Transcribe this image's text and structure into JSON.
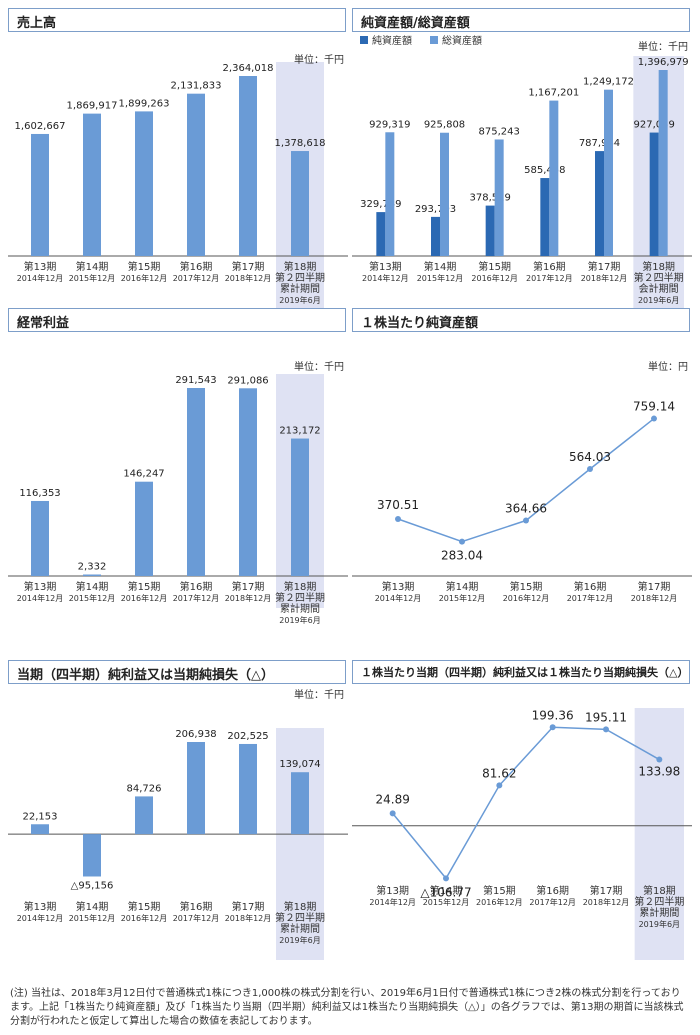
{
  "colors": {
    "primary": "#6a9bd6",
    "dark": "#2b69b3",
    "highlight_bg": "#dfe2f3",
    "axis": "#555555",
    "header_border": "#7d9ec9"
  },
  "footnote": "(注) 当社は、2018年3月12日付で普通株式1株につき1,000株の株式分割を行い、2019年6月1日付で普通株式1株につき2株の株式分割を行っております。上記「1株当たり純資産額」及び「1株当たり当期（四半期）純利益又は1株当たり当期純損失（△）」の各グラフでは、第13期の期首に当該株式分割が行われたと仮定して算出した場合の数値を表記しております。",
  "chart_data": [
    {
      "id": "sales",
      "type": "bar",
      "title": "売上高",
      "unit": "単位：千円",
      "categories": [
        [
          "第13期",
          "2014年12月"
        ],
        [
          "第14期",
          "2015年12月"
        ],
        [
          "第15期",
          "2016年12月"
        ],
        [
          "第16期",
          "2017年12月"
        ],
        [
          "第17期",
          "2018年12月"
        ],
        [
          "第18期",
          "第２四半期",
          "累計期間",
          "2019年6月"
        ]
      ],
      "series": [
        {
          "values": [
            1602667,
            1869917,
            1899263,
            2131833,
            2364018,
            1378618
          ]
        }
      ],
      "labels": [
        "1,602,667",
        "1,869,917",
        "1,899,263",
        "2,131,833",
        "2,364,018",
        "1,378,618"
      ],
      "ylim": [
        0,
        2364018
      ],
      "highlight_last": true
    },
    {
      "id": "assets",
      "type": "bar",
      "title": "純資産額/総資産額",
      "unit": "単位：千円",
      "legend_position": "top-left",
      "categories": [
        [
          "第13期",
          "2014年12月"
        ],
        [
          "第14期",
          "2015年12月"
        ],
        [
          "第15期",
          "2016年12月"
        ],
        [
          "第16期",
          "2017年12月"
        ],
        [
          "第17期",
          "2018年12月"
        ],
        [
          "第18期",
          "第２四半期",
          "会計期間",
          "2019年6月"
        ]
      ],
      "series": [
        {
          "name": "純資産額",
          "values": [
            329749,
            293793,
            378519,
            585458,
            787984,
            927059
          ],
          "labels": [
            "329,749",
            "293,793",
            "378,519",
            "585,458",
            "787,984",
            "927,059"
          ]
        },
        {
          "name": "総資産額",
          "values": [
            929319,
            925808,
            875243,
            1167201,
            1249172,
            1396979
          ],
          "labels": [
            "929,319",
            "925,808",
            "875,243",
            "1,167,201",
            "1,249,172",
            "1,396,979"
          ]
        }
      ],
      "ylim": [
        0,
        1396979
      ],
      "highlight_last": true
    },
    {
      "id": "ordinary",
      "type": "bar",
      "title": "経常利益",
      "unit": "単位：千円",
      "categories": [
        [
          "第13期",
          "2014年12月"
        ],
        [
          "第14期",
          "2015年12月"
        ],
        [
          "第15期",
          "2016年12月"
        ],
        [
          "第16期",
          "2017年12月"
        ],
        [
          "第17期",
          "2018年12月"
        ],
        [
          "第18期",
          "第２四半期",
          "累計期間",
          "2019年6月"
        ]
      ],
      "series": [
        {
          "values": [
            116353,
            2332,
            146247,
            291543,
            291086,
            213172
          ]
        }
      ],
      "labels": [
        "116,353",
        "2,332",
        "146,247",
        "291,543",
        "291,086",
        "213,172"
      ],
      "ylim": [
        0,
        291543
      ],
      "highlight_last": true
    },
    {
      "id": "bps",
      "type": "line",
      "title": "１株当たり純資産額",
      "unit": "単位：円",
      "categories": [
        [
          "第13期",
          "2014年12月"
        ],
        [
          "第14期",
          "2015年12月"
        ],
        [
          "第15期",
          "2016年12月"
        ],
        [
          "第16期",
          "2017年12月"
        ],
        [
          "第17期",
          "2018年12月"
        ]
      ],
      "series": [
        {
          "values": [
            370.51,
            283.04,
            364.66,
            564.03,
            759.14
          ]
        }
      ],
      "labels": [
        "370.51",
        "283.04",
        "364.66",
        "564.03",
        "759.14"
      ],
      "ylim": [
        150,
        800
      ],
      "highlight_last": false
    },
    {
      "id": "netincome",
      "type": "bar",
      "title": "当期（四半期）純利益又は当期純損失（△）",
      "unit": "単位：千円",
      "categories": [
        [
          "第13期",
          "2014年12月"
        ],
        [
          "第14期",
          "2015年12月"
        ],
        [
          "第15期",
          "2016年12月"
        ],
        [
          "第16期",
          "2017年12月"
        ],
        [
          "第17期",
          "2018年12月"
        ],
        [
          "第18期",
          "第２四半期",
          "累計期間",
          "2019年6月"
        ]
      ],
      "series": [
        {
          "values": [
            22153,
            -95156,
            84726,
            206938,
            202525,
            139074
          ]
        }
      ],
      "labels": [
        "22,153",
        "△95,156",
        "84,726",
        "206,938",
        "202,525",
        "139,074"
      ],
      "ylim": [
        -130000,
        206938
      ],
      "highlight_last": true
    },
    {
      "id": "eps",
      "type": "line",
      "title": "１株当たり当期（四半期）純利益又は１株当たり当期純損失（△）",
      "categories": [
        [
          "第13期",
          "2014年12月"
        ],
        [
          "第14期",
          "2015年12月"
        ],
        [
          "第15期",
          "2016年12月"
        ],
        [
          "第16期",
          "2017年12月"
        ],
        [
          "第17期",
          "2018年12月"
        ],
        [
          "第18期",
          "第２四半期",
          "累計期間",
          "2019年6月"
        ]
      ],
      "series": [
        {
          "values": [
            24.89,
            -106.77,
            81.62,
            199.36,
            195.11,
            133.98
          ]
        }
      ],
      "labels": [
        "24.89",
        "△106.77",
        "81.62",
        "199.36",
        "195.11",
        "133.98"
      ],
      "ylim": [
        -110,
        210
      ],
      "zero_line": true,
      "highlight_last": true
    }
  ]
}
